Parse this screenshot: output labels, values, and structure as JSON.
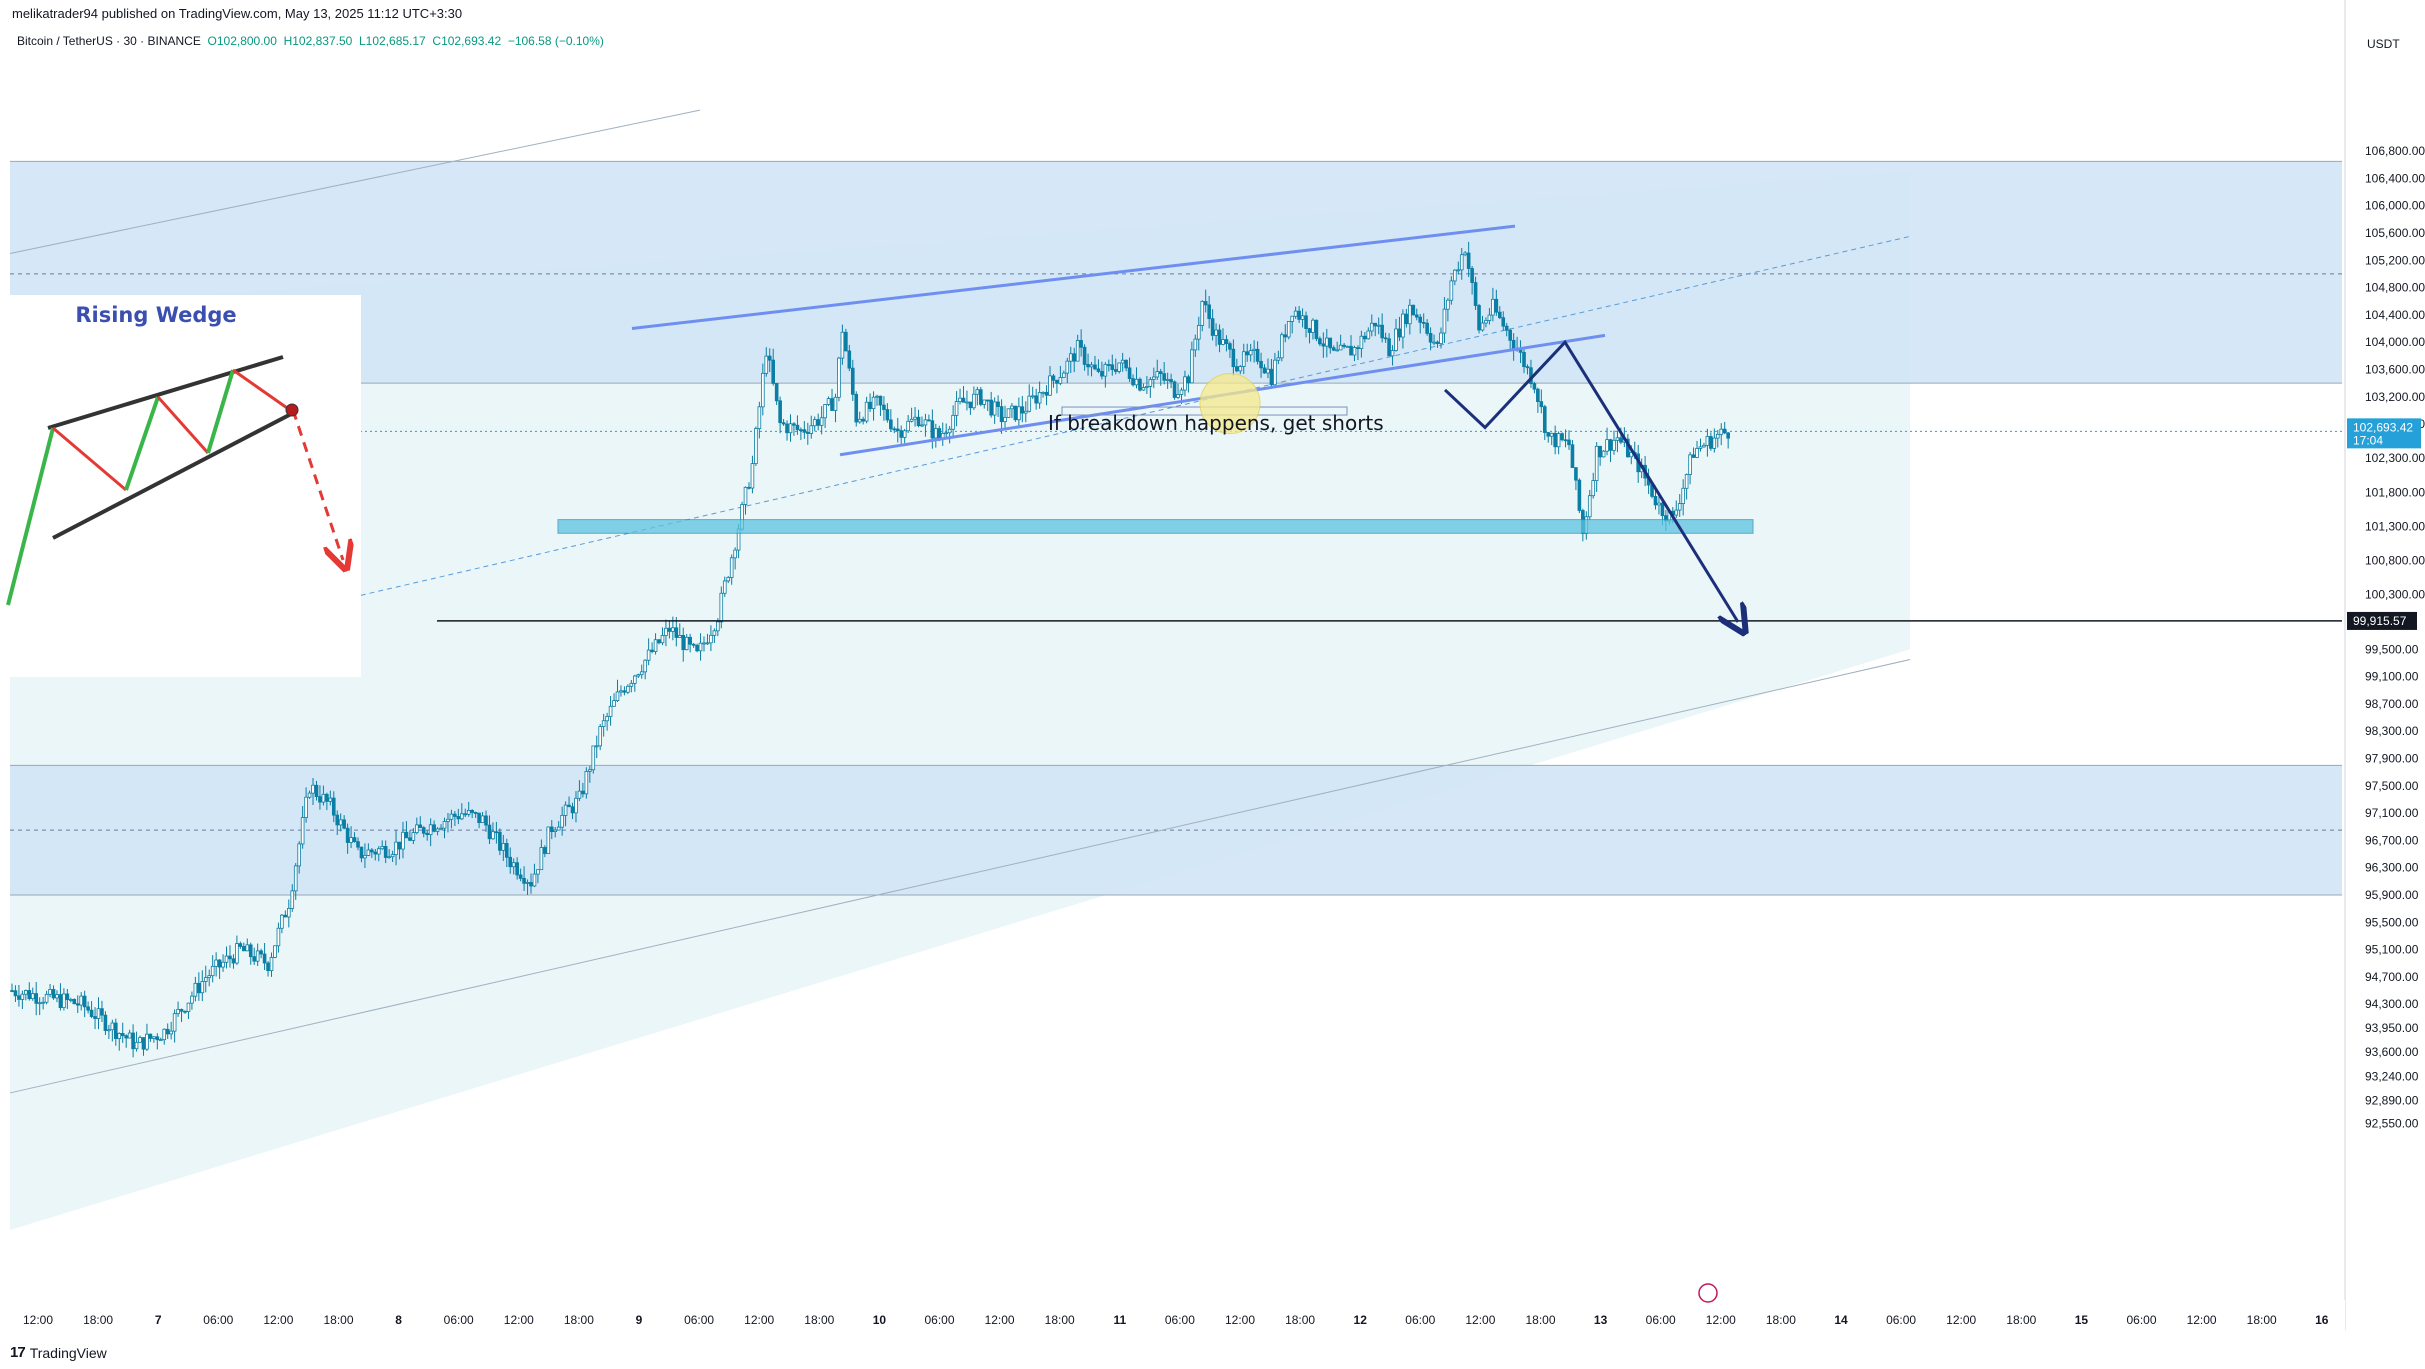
{
  "header": {
    "publisher": "melikatrader94 published on TradingView.com, May 13, 2025 11:12 UTC+3:30"
  },
  "legend": {
    "symbol": "Bitcoin / TetherUS · 30 · BINANCE",
    "open": "O102,800.00",
    "high": "H102,837.50",
    "low": "L102,685.17",
    "close": "C102,693.42",
    "change": "−106.58 (−0.10%)"
  },
  "currency": "USDT",
  "footer": {
    "brand": "TradingView"
  },
  "inset": {
    "title": "Rising Wedge"
  },
  "annotations": {
    "breakdown_text": "If breakdown happens, get shorts"
  },
  "price_badge": {
    "price": "102,693.42",
    "timer": "17:04",
    "color": "#26a0d8"
  },
  "level_badge": {
    "price": "99,915.57"
  },
  "colors": {
    "zone": "#cfe4f7",
    "channel_bg": "#eaf6f8",
    "candle": "#0a7ea4",
    "wedge_line": "#6f8ff0",
    "arrow": "#1c2f7a",
    "support": "#5cc4e0"
  },
  "chart_data": {
    "type": "candlestick",
    "y_axis": {
      "ticks": [
        "106,800.00",
        "106,400.00",
        "106,000.00",
        "105,600.00",
        "105,200.00",
        "104,800.00",
        "104,400.00",
        "104,000.00",
        "103,600.00",
        "103,200.00",
        "102,800.00",
        "102,300.00",
        "101,800.00",
        "101,300.00",
        "100,800.00",
        "100,300.00",
        "99,500.00",
        "99,100.00",
        "98,700.00",
        "98,300.00",
        "97,900.00",
        "97,500.00",
        "97,100.00",
        "96,700.00",
        "96,300.00",
        "95,900.00",
        "95,500.00",
        "95,100.00",
        "94,700.00",
        "94,300.00",
        "93,950.00",
        "93,600.00",
        "93,240.00",
        "92,890.00",
        "92,550.00"
      ],
      "tick_values": [
        106800,
        106400,
        106000,
        105600,
        105200,
        104800,
        104400,
        104000,
        103600,
        103200,
        102800,
        102300,
        101800,
        101300,
        100800,
        100300,
        99500,
        99100,
        98700,
        98300,
        97900,
        97500,
        97100,
        96700,
        96300,
        95900,
        95500,
        95100,
        94700,
        94300,
        93950,
        93600,
        93240,
        92890,
        92550
      ]
    },
    "x_axis": {
      "ticks": [
        "12:00",
        "18:00",
        "7",
        "06:00",
        "12:00",
        "18:00",
        "8",
        "06:00",
        "12:00",
        "18:00",
        "9",
        "06:00",
        "12:00",
        "18:00",
        "10",
        "06:00",
        "12:00",
        "18:00",
        "11",
        "06:00",
        "12:00",
        "18:00",
        "12",
        "06:00",
        "12:00",
        "18:00",
        "13",
        "06:00",
        "12:00",
        "18:00",
        "14",
        "06:00",
        "12:00",
        "18:00",
        "15",
        "06:00",
        "12:00",
        "18:00",
        "16"
      ],
      "bold": [
        "7",
        "8",
        "9",
        "10",
        "11",
        "12",
        "13",
        "14",
        "15",
        "16"
      ]
    },
    "price_path": [
      [
        0,
        94500
      ],
      [
        10,
        94300
      ],
      [
        18,
        93700
      ],
      [
        22,
        93900
      ],
      [
        28,
        94700
      ],
      [
        33,
        95100
      ],
      [
        37,
        94900
      ],
      [
        40,
        95800
      ],
      [
        43,
        97500
      ],
      [
        46,
        97200
      ],
      [
        50,
        96500
      ],
      [
        55,
        96600
      ],
      [
        60,
        96900
      ],
      [
        65,
        97100
      ],
      [
        68,
        97000
      ],
      [
        72,
        96400
      ],
      [
        75,
        96100
      ],
      [
        78,
        96900
      ],
      [
        82,
        97300
      ],
      [
        85,
        98300
      ],
      [
        88,
        98900
      ],
      [
        92,
        99400
      ],
      [
        95,
        99800
      ],
      [
        99,
        99400
      ],
      [
        102,
        100000
      ],
      [
        105,
        101300
      ],
      [
        107,
        102200
      ],
      [
        109,
        103900
      ],
      [
        111,
        102800
      ],
      [
        114,
        102700
      ],
      [
        117,
        102900
      ],
      [
        119,
        103200
      ],
      [
        120,
        104200
      ],
      [
        122,
        102900
      ],
      [
        125,
        103100
      ],
      [
        128,
        102700
      ],
      [
        131,
        102900
      ],
      [
        134,
        102600
      ],
      [
        137,
        103100
      ],
      [
        140,
        103200
      ],
      [
        143,
        102900
      ],
      [
        146,
        103000
      ],
      [
        149,
        103300
      ],
      [
        152,
        103600
      ],
      [
        154,
        103900
      ],
      [
        157,
        103500
      ],
      [
        160,
        103700
      ],
      [
        163,
        103400
      ],
      [
        166,
        103500
      ],
      [
        168,
        103300
      ],
      [
        170,
        103500
      ],
      [
        172,
        104600
      ],
      [
        174,
        104100
      ],
      [
        177,
        103700
      ],
      [
        180,
        103800
      ],
      [
        182,
        103500
      ],
      [
        185,
        104500
      ],
      [
        188,
        104200
      ],
      [
        191,
        103800
      ],
      [
        194,
        103900
      ],
      [
        197,
        104300
      ],
      [
        199,
        103900
      ],
      [
        202,
        104500
      ],
      [
        204,
        104300
      ],
      [
        206,
        103900
      ],
      [
        208,
        104900
      ],
      [
        210,
        105400
      ],
      [
        212,
        104200
      ],
      [
        214,
        104500
      ],
      [
        217,
        104000
      ],
      [
        220,
        103400
      ],
      [
        222,
        102600
      ],
      [
        225,
        102500
      ],
      [
        227,
        101200
      ],
      [
        229,
        102400
      ],
      [
        232,
        102600
      ],
      [
        235,
        102200
      ],
      [
        238,
        101600
      ],
      [
        240,
        101400
      ],
      [
        243,
        102400
      ],
      [
        246,
        102600
      ],
      [
        248,
        102700
      ]
    ],
    "levels": {
      "upper_zone": [
        103400,
        106650
      ],
      "upper_zone_mid": 105000,
      "lower_zone": [
        95900,
        97800
      ],
      "lower_zone_mid": 96850,
      "support_box": [
        101200,
        101400
      ],
      "target_line": 99915.57,
      "current_price": 102693.42
    }
  }
}
